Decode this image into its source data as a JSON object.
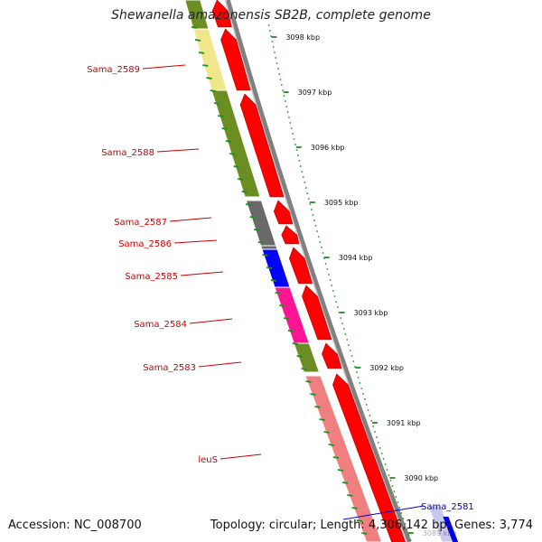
{
  "title": "Shewanella amazonensis SB2B, complete genome",
  "accession": "Accession: NC_008700",
  "summary": "Topology: circular; Length: 4,306,142 bp; Genes: 3,774",
  "colors": {
    "gene_label": "#cc0000",
    "gene_label_highlight": "#0000cc",
    "forward_arrow": "#ff0000",
    "backbone": "#808080",
    "ticks": "#228b22"
  },
  "ruler": [
    {
      "label": "3098 kbp"
    },
    {
      "label": "3097 kbp"
    },
    {
      "label": "3096 kbp"
    },
    {
      "label": "3095 kbp"
    },
    {
      "label": "3094 kbp"
    },
    {
      "label": "3093 kbp"
    },
    {
      "label": "3092 kbp"
    },
    {
      "label": "3091 kbp"
    },
    {
      "label": "3090 kbp"
    },
    {
      "label": "3089 kbp"
    }
  ],
  "genes": [
    {
      "label": "Sama_2589",
      "color": "#f0e68c"
    },
    {
      "label": "Sama_2588",
      "color": "#6b8e23"
    },
    {
      "label": "Sama_2587",
      "color": "#696969"
    },
    {
      "label": "Sama_2586",
      "color": "#696969"
    },
    {
      "label": "Sama_2585",
      "color": "#0000ff"
    },
    {
      "label": "Sama_2584",
      "color": "#ff1493"
    },
    {
      "label": "Sama_2583",
      "color": "#6b8e23"
    },
    {
      "label": "leuS",
      "color": "#f08080"
    },
    {
      "label": "Sama_2581",
      "color": "#c8c8f0"
    }
  ]
}
